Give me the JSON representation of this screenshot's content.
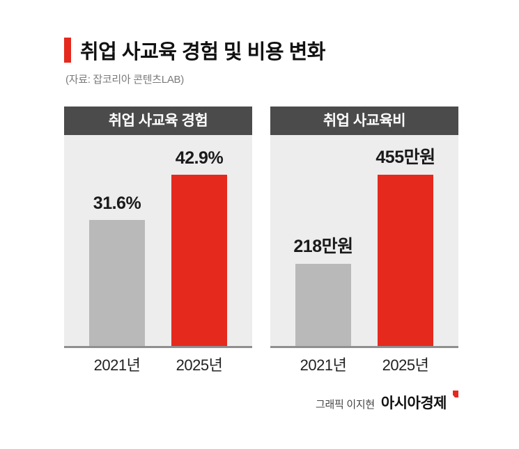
{
  "header": {
    "title": "취업 사교육 경험 및 비용 변화",
    "source": "(자료: 잡코리아 콘텐츠LAB)"
  },
  "footer": {
    "credit": "그래픽 이지현",
    "brand": "아시아경제"
  },
  "colors": {
    "accent": "#e5291d",
    "bar_gray": "#b9b9b9",
    "panel_bg": "#ededed",
    "panel_header_bg": "#4b4b4b"
  },
  "chart_data": [
    {
      "type": "bar",
      "title": "취업 사교육 경험",
      "categories": [
        "2021년",
        "2025년"
      ],
      "values": [
        31.6,
        42.9
      ],
      "value_labels": [
        "31.6%",
        "42.9%"
      ],
      "unit": "%",
      "bar_colors": [
        "#b9b9b9",
        "#e5291d"
      ],
      "ylim": [
        0,
        42.9
      ],
      "legend": "none",
      "grid": false
    },
    {
      "type": "bar",
      "title": "취업 사교육비",
      "categories": [
        "2021년",
        "2025년"
      ],
      "values": [
        218,
        455
      ],
      "value_labels": [
        "218만원",
        "455만원"
      ],
      "unit": "만원",
      "bar_colors": [
        "#b9b9b9",
        "#e5291d"
      ],
      "ylim": [
        0,
        455
      ],
      "legend": "none",
      "grid": false
    }
  ]
}
